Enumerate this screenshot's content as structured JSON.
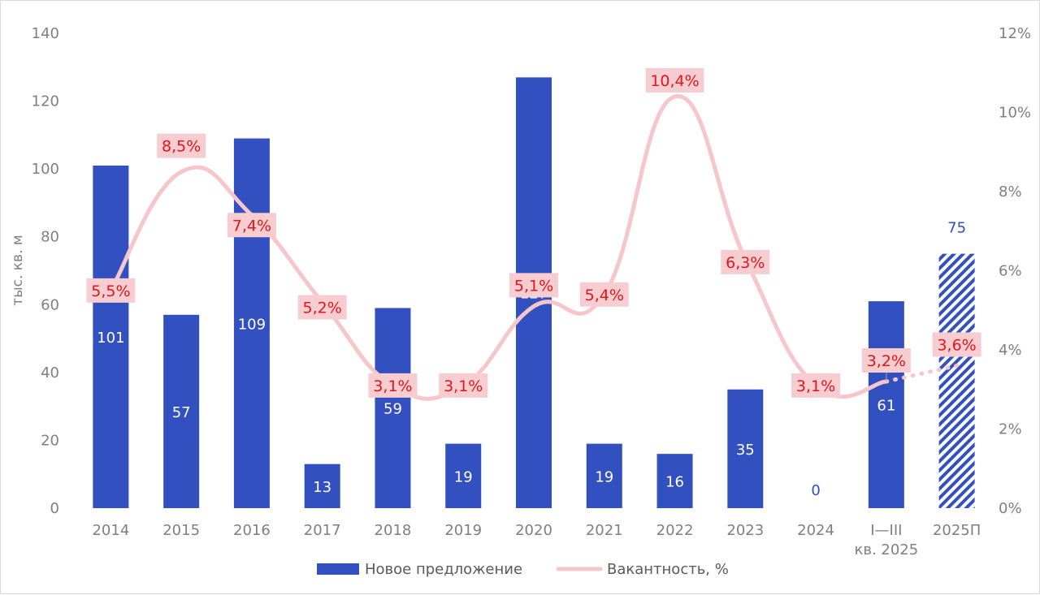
{
  "colors": {
    "bar": "#3350c0",
    "line": "#f7c6cb",
    "label_box": "#f8cdd1",
    "label_text": "#e0161b",
    "axis_text": "#7f7f7f"
  },
  "legend": {
    "bars": "Новое предложение",
    "line": "Вакантность, %"
  },
  "chart_data": {
    "type": "bar",
    "ylabel": "тыс. кв. м",
    "ylim": [
      0,
      140
    ],
    "y_ticks": [
      "0",
      "20",
      "40",
      "60",
      "80",
      "100",
      "120",
      "140"
    ],
    "y2lim": [
      0,
      12
    ],
    "y2_ticks": [
      "0%",
      "2%",
      "4%",
      "6%",
      "8%",
      "10%",
      "12%"
    ],
    "categories": [
      [
        "2014"
      ],
      [
        "2015"
      ],
      [
        "2016"
      ],
      [
        "2017"
      ],
      [
        "2018"
      ],
      [
        "2019"
      ],
      [
        "2020"
      ],
      [
        "2021"
      ],
      [
        "2022"
      ],
      [
        "2023"
      ],
      [
        "2024"
      ],
      [
        "I—III",
        "кв. 2025"
      ],
      [
        "2025П"
      ]
    ],
    "series": [
      {
        "name": "Новое предложение",
        "type": "bar",
        "values": [
          101,
          57,
          109,
          13,
          59,
          19,
          127,
          19,
          16,
          35,
          0,
          61,
          75
        ],
        "labels": [
          "101",
          "57",
          "109",
          "13",
          "59",
          "19",
          "127",
          "19",
          "16",
          "35",
          "0",
          "61",
          "75"
        ],
        "forecast_index": 12
      },
      {
        "name": "Вакантность, %",
        "type": "line",
        "values": [
          5.5,
          8.5,
          7.4,
          5.2,
          3.1,
          3.1,
          5.1,
          5.4,
          10.4,
          6.3,
          3.1,
          3.2,
          3.6
        ],
        "labels": [
          "5,5%",
          "8,5%",
          "7,4%",
          "5,2%",
          "3,1%",
          "3,1%",
          "5,1%",
          "5,4%",
          "10,4%",
          "6,3%",
          "3,1%",
          "3,2%",
          "3,6%"
        ],
        "forecast_index": 12
      }
    ],
    "grid": false,
    "legend_position": "bottom"
  }
}
